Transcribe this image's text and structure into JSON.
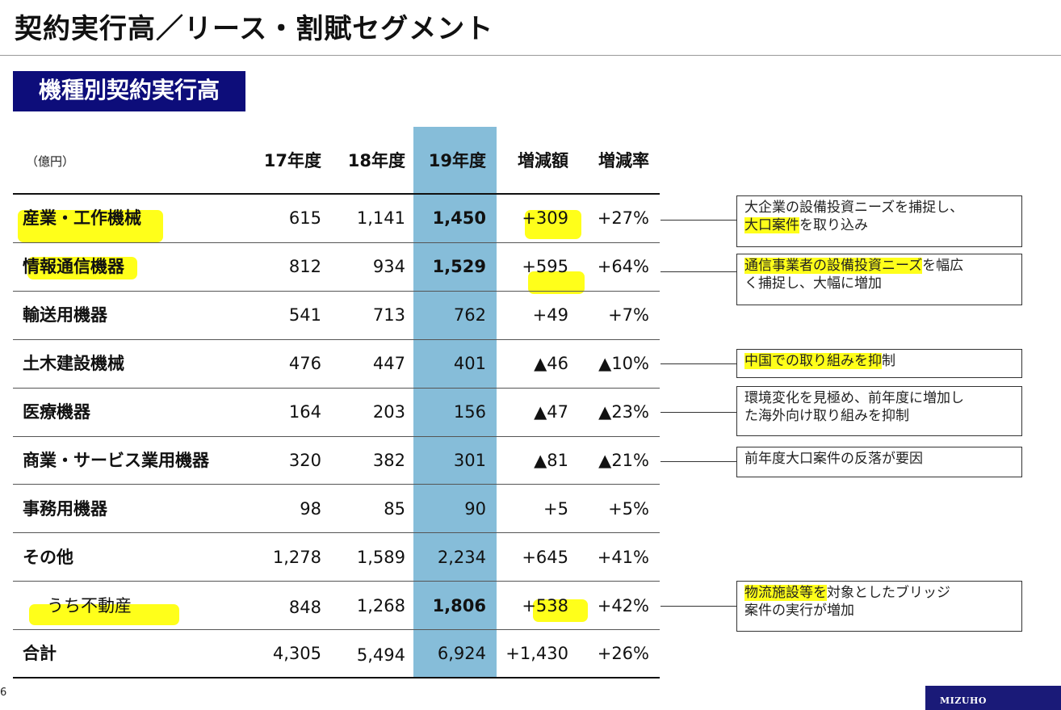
{
  "header": {
    "title": "契約実行高／リース・割賦セグメント",
    "section_label": "機種別契約実行高"
  },
  "table": {
    "unit": "（億円）",
    "columns": [
      "17年度",
      "18年度",
      "19年度",
      "増減額",
      "増減率"
    ],
    "rows": [
      {
        "label": "産業・工作機械",
        "fy17": "615",
        "fy18": "1,141",
        "fy19": "1,450",
        "change": "+309",
        "rate": "+27%"
      },
      {
        "label": "情報通信機器",
        "fy17": "812",
        "fy18": "934",
        "fy19": "1,529",
        "change": "+595",
        "rate": "+64%"
      },
      {
        "label": "輸送用機器",
        "fy17": "541",
        "fy18": "713",
        "fy19": "762",
        "change": "+49",
        "rate": "+7%"
      },
      {
        "label": "土木建設機械",
        "fy17": "476",
        "fy18": "447",
        "fy19": "401",
        "change": "▲46",
        "rate": "▲10%"
      },
      {
        "label": "医療機器",
        "fy17": "164",
        "fy18": "203",
        "fy19": "156",
        "change": "▲47",
        "rate": "▲23%"
      },
      {
        "label": "商業・サービス業用機器",
        "fy17": "320",
        "fy18": "382",
        "fy19": "301",
        "change": "▲81",
        "rate": "▲21%"
      },
      {
        "label": "事務用機器",
        "fy17": "98",
        "fy18": "85",
        "fy19": "90",
        "change": "+5",
        "rate": "+5%"
      },
      {
        "label": "その他",
        "fy17": "1,278",
        "fy18": "1,589",
        "fy19": "2,234",
        "change": "+645",
        "rate": "+41%"
      },
      {
        "label": "うち不動産",
        "fy17": "848",
        "fy18": "1,268",
        "fy19": "1,806",
        "change": "+538",
        "rate": "+42%"
      },
      {
        "label": "合計",
        "fy17": "4,305",
        "fy18": "5,494",
        "fy19": "6,924",
        "change": "+1,430",
        "rate": "+26%"
      }
    ]
  },
  "notes": {
    "industrial": {
      "line1": "大企業の設備投資ニーズを捕捉し、",
      "line2_mark": "大口案件",
      "line2_rest": "を取り込み"
    },
    "telecom": {
      "line1_mark": "通信事業者の設備投資ニーズ",
      "line1_rest": "を幅広",
      "line2": "く捕捉し、大幅に増加"
    },
    "construction": {
      "mark": "中国での取り組みを抑",
      "rest": "制"
    },
    "medical": {
      "line1": "環境変化を見極め、前年度に増加し",
      "line2": "た海外向け取り組みを抑制"
    },
    "commercial": {
      "line1": "前年度大口案件の反落が要因"
    },
    "realestate": {
      "line1_mark": "物流施設等を",
      "line1_rest": "対象としたブリッジ",
      "line2": "案件の実行が増加"
    }
  },
  "footer": {
    "page_number": "6",
    "logo_text": "MIZUHO"
  },
  "colors": {
    "section_bg": "#0d0d7a",
    "fy19_column": "#86bdd9",
    "highlight": "#ffff1a",
    "logo_bg": "#1a1a78"
  }
}
